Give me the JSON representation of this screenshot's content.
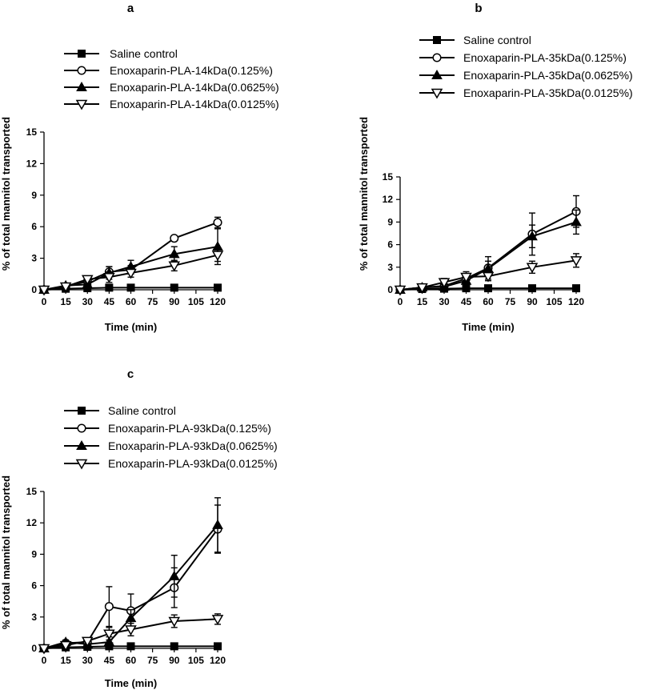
{
  "chart_data": [
    {
      "type": "line",
      "panel": "a",
      "xlabel": "Time (min)",
      "ylabel": "% of total mannitol transported",
      "xlim": [
        0,
        120
      ],
      "ylim": [
        0,
        15
      ],
      "xticks": [
        0,
        15,
        30,
        45,
        60,
        75,
        90,
        105,
        120
      ],
      "yticks": [
        0,
        3,
        6,
        9,
        12,
        15
      ],
      "legend_position": "top-left",
      "x": [
        0,
        15,
        30,
        45,
        60,
        90,
        120
      ],
      "series": [
        {
          "name": "Saline control",
          "marker": "filled-square",
          "values": [
            0,
            0.1,
            0.15,
            0.2,
            0.2,
            0.2,
            0.2
          ],
          "errors": [
            0,
            0,
            0,
            0,
            0,
            0,
            0
          ]
        },
        {
          "name": "Enoxaparin-PLA-14kDa(0.125%)",
          "marker": "open-circle",
          "values": [
            0,
            0.3,
            0.8,
            1.7,
            1.9,
            4.9,
            6.4
          ],
          "errors": [
            0,
            0.2,
            0.3,
            0.5,
            0.4,
            0.2,
            0.5
          ]
        },
        {
          "name": "Enoxaparin-PLA-14kDa(0.0625%)",
          "marker": "filled-triangle",
          "values": [
            0,
            0.4,
            0.5,
            1.6,
            2.2,
            3.4,
            4.1
          ],
          "errors": [
            0,
            0.2,
            0.3,
            0.6,
            0.6,
            0.7,
            1.7
          ]
        },
        {
          "name": "Enoxaparin-PLA-14kDa(0.0125%)",
          "marker": "open-triangle-down",
          "values": [
            0,
            0.3,
            1.0,
            1.2,
            1.6,
            2.3,
            3.3
          ],
          "errors": [
            0,
            0.2,
            0.3,
            0.5,
            0.4,
            0.5,
            0.6
          ]
        }
      ]
    },
    {
      "type": "line",
      "panel": "b",
      "xlabel": "Time (min)",
      "ylabel": "% of total mannitol transported",
      "xlim": [
        0,
        120
      ],
      "ylim": [
        0,
        15
      ],
      "xticks": [
        0,
        15,
        30,
        45,
        60,
        75,
        90,
        105,
        120
      ],
      "yticks": [
        0,
        3,
        6,
        9,
        12,
        15
      ],
      "legend_position": "top-left",
      "x": [
        0,
        15,
        30,
        45,
        60,
        90,
        120
      ],
      "series": [
        {
          "name": "Saline control",
          "marker": "filled-square",
          "values": [
            0,
            0.1,
            0.15,
            0.2,
            0.2,
            0.2,
            0.2
          ],
          "errors": [
            0,
            0,
            0,
            0,
            0,
            0,
            0
          ]
        },
        {
          "name": "Enoxaparin-PLA-35kDa(0.125%)",
          "marker": "open-circle",
          "values": [
            0,
            0.3,
            0.5,
            1.5,
            2.9,
            7.4,
            10.4
          ],
          "errors": [
            0,
            0.2,
            0.3,
            0.6,
            1.5,
            2.8,
            2.1
          ]
        },
        {
          "name": "Enoxaparin-PLA-35kDa(0.0625%)",
          "marker": "filled-triangle",
          "values": [
            0,
            0.3,
            0.4,
            1.2,
            2.8,
            7.1,
            9.0
          ],
          "errors": [
            0,
            0.2,
            0.3,
            0.5,
            1.0,
            1.5,
            1.6
          ]
        },
        {
          "name": "Enoxaparin-PLA-35kDa(0.0125%)",
          "marker": "open-triangle-down",
          "values": [
            0,
            0.3,
            1.0,
            1.7,
            1.8,
            3.0,
            3.9
          ],
          "errors": [
            0,
            0.2,
            0.5,
            0.7,
            0.6,
            0.8,
            0.9
          ]
        }
      ]
    },
    {
      "type": "line",
      "panel": "c",
      "xlabel": "Time (min)",
      "ylabel": "% of total mannitol transported",
      "xlim": [
        0,
        120
      ],
      "ylim": [
        0,
        15
      ],
      "xticks": [
        0,
        15,
        30,
        45,
        60,
        75,
        90,
        105,
        120
      ],
      "yticks": [
        0,
        3,
        6,
        9,
        12,
        15
      ],
      "legend_position": "top-left",
      "x": [
        0,
        15,
        30,
        45,
        60,
        90,
        120
      ],
      "series": [
        {
          "name": "Saline control",
          "marker": "filled-square",
          "values": [
            0,
            0.1,
            0.15,
            0.2,
            0.2,
            0.2,
            0.2
          ],
          "errors": [
            0,
            0,
            0,
            0,
            0,
            0,
            0
          ]
        },
        {
          "name": "Enoxaparin-PLA-93kDa(0.125%)",
          "marker": "open-circle",
          "values": [
            0,
            0.5,
            0.6,
            4.0,
            3.6,
            5.8,
            11.4
          ],
          "errors": [
            0,
            0.2,
            0.3,
            1.9,
            1.6,
            1.9,
            2.3
          ]
        },
        {
          "name": "Enoxaparin-PLA-93kDa(0.0625%)",
          "marker": "filled-triangle",
          "values": [
            0,
            0.6,
            0.4,
            0.6,
            2.9,
            6.9,
            11.8
          ],
          "errors": [
            0,
            0.2,
            0.3,
            0.5,
            0.8,
            2.0,
            2.6
          ]
        },
        {
          "name": "Enoxaparin-PLA-93kDa(0.0125%)",
          "marker": "open-triangle-down",
          "values": [
            0,
            0.3,
            0.7,
            1.4,
            1.8,
            2.6,
            2.8
          ],
          "errors": [
            0,
            0.2,
            0.3,
            0.6,
            0.6,
            0.6,
            0.5
          ]
        }
      ]
    }
  ]
}
